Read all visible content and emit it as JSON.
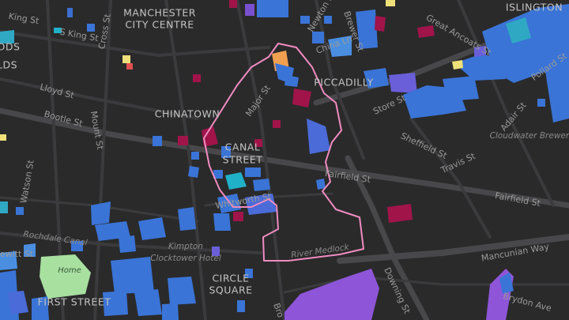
{
  "map": {
    "labels": [
      "ISLINGTON",
      "King St",
      "MANCHESTER",
      "CITY CENTRE",
      "S King St",
      "Cross St",
      "Newton St",
      "China Ln",
      "Brewer St",
      "Great Ancoats St",
      "Pollard St",
      "ODS",
      "LDS",
      "PICCADILLY",
      "Lloyd St",
      "Major St",
      "Store St",
      "Bootle St",
      "CHINATOWN",
      "Mount St",
      "Adair St",
      "CANAL",
      "STREET",
      "Sheffield St",
      "Cloudwater Brewery",
      "Travis St",
      "Fairfield St",
      "Fairfield St",
      "Watson St",
      "Whitworth St",
      "Rochdale Canal",
      "Kimpton",
      "Clocktower Hotel",
      "ewitt St",
      "River Medlock",
      "Mancunian Way",
      "Home",
      "CIRCLE",
      "SQUARE",
      "FIRST STREET",
      "Downing St",
      "Brydon Ave",
      "Bro"
    ]
  }
}
